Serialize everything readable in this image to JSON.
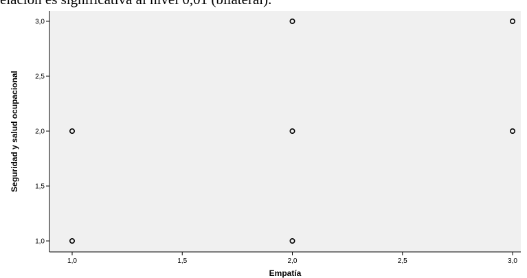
{
  "document": {
    "text_above": "elación es significativa al nivel 0,01 (bilateral)."
  },
  "colors": {
    "plot_background": "#f0f0f0",
    "marker_stroke": "#000000",
    "axis": "#000000"
  },
  "chart_data": {
    "type": "scatter",
    "title": "",
    "xlabel": "Empatía",
    "ylabel": "Seguridad y salud ocupacional",
    "xlim": [
      0.9,
      3.05
    ],
    "ylim": [
      0.9,
      3.05
    ],
    "x_ticks": [
      1.0,
      1.5,
      2.0,
      2.5,
      3.0
    ],
    "x_tick_labels": [
      "1,0",
      "1,5",
      "2,0",
      "2,5",
      "3,0"
    ],
    "y_ticks": [
      1.0,
      1.5,
      2.0,
      2.5,
      3.0
    ],
    "y_tick_labels": [
      "1,0",
      "1,5",
      "2,0",
      "2,5",
      "3,0"
    ],
    "grid": false,
    "marker": "hollow-circle",
    "points": [
      {
        "x": 1.0,
        "y": 1.0
      },
      {
        "x": 1.0,
        "y": 2.0
      },
      {
        "x": 2.0,
        "y": 1.0
      },
      {
        "x": 2.0,
        "y": 2.0
      },
      {
        "x": 2.0,
        "y": 3.0
      },
      {
        "x": 3.0,
        "y": 2.0
      },
      {
        "x": 3.0,
        "y": 3.0
      }
    ]
  }
}
